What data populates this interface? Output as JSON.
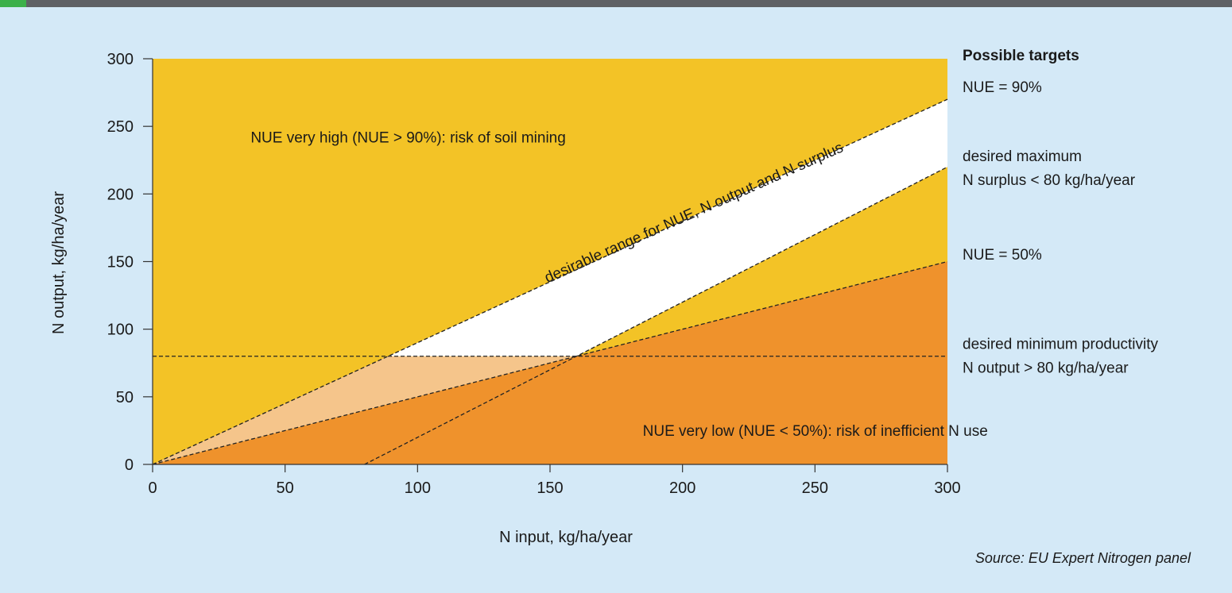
{
  "colors": {
    "background": "#d4e9f7",
    "very_high_zone": "#f3c326",
    "very_low_zone": "#ef922c",
    "light_zone": "#f5c58b",
    "desirable_zone": "#ffffff",
    "line": "#222222"
  },
  "chart_data": {
    "type": "area",
    "xlabel": "N input, kg/ha/year",
    "ylabel": "N output, kg/ha/year",
    "xlim": [
      0,
      300
    ],
    "ylim": [
      0,
      300
    ],
    "x_ticks": [
      0,
      50,
      100,
      150,
      200,
      250,
      300
    ],
    "y_ticks": [
      0,
      50,
      100,
      150,
      200,
      250,
      300
    ],
    "grid": false,
    "lines": [
      {
        "name": "NUE = 90%",
        "points": [
          [
            0,
            0
          ],
          [
            300,
            270
          ]
        ]
      },
      {
        "name": "NUE = 50%",
        "points": [
          [
            0,
            0
          ],
          [
            300,
            150
          ]
        ]
      },
      {
        "name": "desired maximum N surplus < 80 kg/ha/year",
        "points": [
          [
            80,
            0
          ],
          [
            300,
            220
          ]
        ]
      },
      {
        "name": "desired minimum productivity N output > 80 kg/ha/year",
        "points": [
          [
            0,
            80
          ],
          [
            300,
            80
          ]
        ]
      }
    ],
    "regions": [
      {
        "label": "NUE very high (NUE > 90%): risk of soil mining",
        "label_at": [
          37,
          238
        ]
      },
      {
        "label": "desirable range for NUE, N output and N surplus",
        "label_at": [
          205,
          183
        ],
        "label_angle": -24
      },
      {
        "label": "NUE very low (NUE < 50%): risk of inefficient N use",
        "label_at": [
          185,
          21
        ]
      }
    ],
    "side_panel": {
      "title": "Possible targets",
      "items": [
        {
          "lines": [
            "NUE = 90%"
          ],
          "y": 279
        },
        {
          "lines": [
            "desired maximum",
            "N surplus < 80 kg/ha/year"
          ],
          "y": 219
        },
        {
          "lines": [
            "NUE = 50%"
          ],
          "y": 155
        },
        {
          "lines": [
            "desired minimum productivity",
            "N output > 80 kg/ha/year"
          ],
          "y": 80
        }
      ]
    },
    "source": "Source: EU Expert Nitrogen panel"
  }
}
